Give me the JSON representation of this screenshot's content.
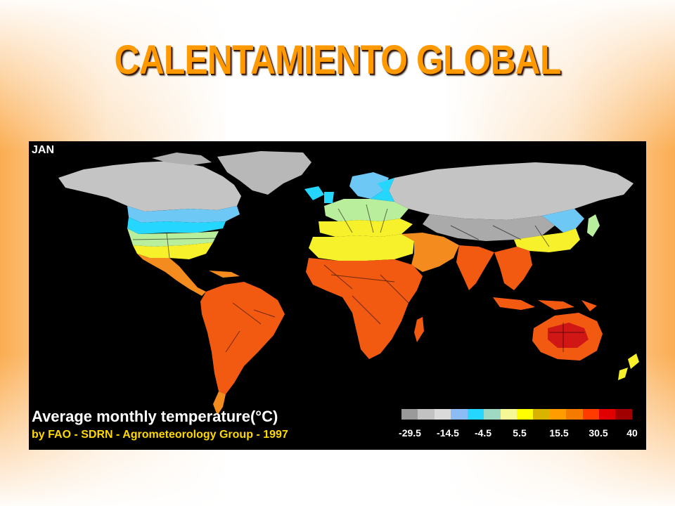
{
  "slide": {
    "title": "CALENTAMIENTO GLOBAL"
  },
  "map": {
    "month_label": "JAN",
    "caption": "Average monthly temperature(°C)",
    "credit": "by FAO - SDRN - Agrometeorology Group - 1997",
    "colors": {
      "background": "#000000",
      "coldest": "#aaaaaa",
      "ice": "#c8c8c8",
      "cool_blue": "#6ec8f5",
      "cyan": "#25d7ff",
      "mild_green": "#b9ef9c",
      "yellow": "#f6f12a",
      "warm_orange": "#f48b1e",
      "hot_orange_red": "#f25a12",
      "hottest": "#d11616"
    }
  },
  "legend": {
    "swatches": [
      "#9a9a9a",
      "#c2c2c2",
      "#dadada",
      "#8cbcf5",
      "#25d7ff",
      "#9fd9c4",
      "#f6f797",
      "#ffff00",
      "#d8b400",
      "#ff9c00",
      "#f57a00",
      "#ff3b00",
      "#e00000",
      "#a00000"
    ],
    "ticks": [
      "-29.5",
      "-14.5",
      "-4.5",
      "5.5",
      "15.5",
      "30.5",
      "40"
    ]
  }
}
